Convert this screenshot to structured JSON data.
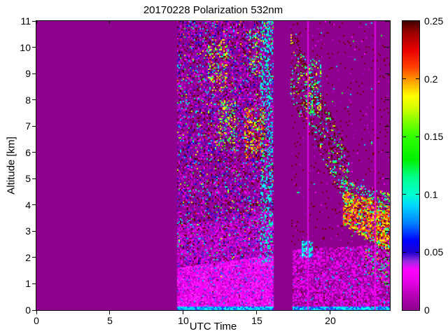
{
  "chart_data": {
    "type": "heatmap",
    "title": "20170228 Polarization 532nm",
    "xlabel": "UTC Time",
    "ylabel": "Altitude [km]",
    "x_range": [
      0,
      24.05
    ],
    "y_range": [
      0,
      11
    ],
    "x_tick_values": [
      0,
      5,
      10,
      15,
      20
    ],
    "x_tick_labels": [
      "0",
      "5",
      "10",
      "15",
      "20"
    ],
    "y_tick_values": [
      0,
      1,
      2,
      3,
      4,
      5,
      6,
      7,
      8,
      9,
      10,
      11
    ],
    "y_tick_labels": [
      "0",
      "1",
      "2",
      "3",
      "4",
      "5",
      "6",
      "7",
      "8",
      "9",
      "10",
      "11"
    ],
    "background_color": "#8E008E",
    "grid": false,
    "colorbar": {
      "min": 0,
      "max": 0.25,
      "tick_values": [
        0,
        0.05,
        0.1,
        0.15,
        0.2,
        0.25
      ],
      "tick_labels": [
        "0",
        "0.05",
        "0.1",
        "0.15",
        "0.2",
        "0.25"
      ],
      "stops": [
        {
          "value": 0.0,
          "color": "#8E008E"
        },
        {
          "value": 0.012,
          "color": "#B300B3"
        },
        {
          "value": 0.025,
          "color": "#E800E8"
        },
        {
          "value": 0.035,
          "color": "#FF00FF"
        },
        {
          "value": 0.042,
          "color": "#9B2BE2"
        },
        {
          "value": 0.05,
          "color": "#1E00CD"
        },
        {
          "value": 0.06,
          "color": "#0000FF"
        },
        {
          "value": 0.075,
          "color": "#0080FF"
        },
        {
          "value": 0.09,
          "color": "#00D4FF"
        },
        {
          "value": 0.1,
          "color": "#00FFD0"
        },
        {
          "value": 0.115,
          "color": "#00FF8C"
        },
        {
          "value": 0.13,
          "color": "#00F000"
        },
        {
          "value": 0.15,
          "color": "#30FF00"
        },
        {
          "value": 0.163,
          "color": "#80FF00"
        },
        {
          "value": 0.175,
          "color": "#D4FF00"
        },
        {
          "value": 0.185,
          "color": "#FFFF00"
        },
        {
          "value": 0.198,
          "color": "#FFA000"
        },
        {
          "value": 0.21,
          "color": "#FF4000"
        },
        {
          "value": 0.225,
          "color": "#E80000"
        },
        {
          "value": 0.24,
          "color": "#9B0000"
        },
        {
          "value": 0.25,
          "color": "#400000"
        }
      ]
    },
    "regions": [
      {
        "name": "main-noise-column",
        "type": "noise",
        "x": [
          9.55,
          16.1
        ],
        "a": [
          0,
          11
        ],
        "density": 0.72,
        "palette": [
          [
            "#9C00A8",
            20
          ],
          [
            "#7E0096",
            14
          ],
          [
            "#BB00BB",
            10
          ],
          [
            "#D800D8",
            7
          ],
          [
            "#FF00FF",
            5
          ],
          [
            "#4400CC",
            5
          ],
          [
            "#2A2AE8",
            4
          ],
          [
            "#0000C8",
            3
          ],
          [
            "#690010",
            7
          ],
          [
            "#430000",
            3
          ],
          [
            "#7A0000",
            3
          ],
          [
            "#00D9FF",
            3
          ],
          [
            "#00FFC3",
            1.5
          ],
          [
            "#2EFF2E",
            1.2
          ],
          [
            "#C8FF00",
            0.4
          ],
          [
            "#FFFF00",
            0.4
          ],
          [
            "#FF7700",
            0.3
          ],
          [
            "#FF2200",
            0.3
          ]
        ]
      },
      {
        "name": "violet-haze",
        "type": "band",
        "x": [
          9.55,
          16.1
        ],
        "top": [
          3.2,
          3.8
        ],
        "bot": [
          1.6,
          2.1
        ],
        "density": 0.6,
        "palette": [
          [
            "#C400CC",
            8
          ],
          [
            "#A800B8",
            6
          ],
          [
            "#E000E0",
            4
          ],
          [
            "#FF00FF",
            3
          ],
          [
            "#5533EE",
            1.5
          ],
          [
            "#2A2AE8",
            1
          ],
          [
            "#690010",
            0.8
          ],
          [
            "#00D9FF",
            0.5
          ]
        ]
      },
      {
        "name": "boundary-layer-a",
        "type": "band",
        "x": [
          9.55,
          16.1
        ],
        "top": [
          1.6,
          2.1
        ],
        "bot": [
          0.12,
          0.12
        ],
        "density": 0.95,
        "palette": [
          [
            "#FF00FF",
            10
          ],
          [
            "#FF30FF",
            6
          ],
          [
            "#E600E6",
            6
          ],
          [
            "#CC00CC",
            4
          ],
          [
            "#AA00BB",
            2
          ],
          [
            "#7744FF",
            1.2
          ],
          [
            "#3355FF",
            0.8
          ],
          [
            "#00BBFF",
            0.4
          ]
        ]
      },
      {
        "name": "surface-strip-a",
        "type": "noise",
        "x": [
          9.55,
          16.1
        ],
        "a": [
          0,
          0.14
        ],
        "density": 1,
        "palette": [
          [
            "#00CFFF",
            5
          ],
          [
            "#0077FF",
            3
          ],
          [
            "#00FFFF",
            2.5
          ],
          [
            "#2233FF",
            2
          ],
          [
            "#7700FF",
            0.5
          ]
        ]
      },
      {
        "name": "cyan-edge",
        "type": "noise",
        "x": [
          15.25,
          16.1
        ],
        "a": [
          1.8,
          11
        ],
        "density": 0.28,
        "palette": [
          [
            "#00FFFF",
            6
          ],
          [
            "#00FFCC",
            3
          ],
          [
            "#00CCFF",
            2
          ],
          [
            "#00FF66",
            2
          ],
          [
            "#2299FF",
            1
          ]
        ]
      },
      {
        "name": "hotspot-high-1",
        "type": "noise",
        "x": [
          11.65,
          12.95
        ],
        "a": [
          8.3,
          10.3
        ],
        "density": 0.25,
        "palette": [
          [
            "#FFFF00",
            3
          ],
          [
            "#FFA500",
            2
          ],
          [
            "#C8FF00",
            2
          ],
          [
            "#FF3300",
            1
          ],
          [
            "#690010",
            3
          ],
          [
            "#2EFF2E",
            2
          ],
          [
            "#00FFC3",
            1
          ]
        ]
      },
      {
        "name": "hotspot-mid-1",
        "type": "noise",
        "x": [
          12.4,
          13.5
        ],
        "a": [
          6.1,
          8.1
        ],
        "density": 0.28,
        "palette": [
          [
            "#2EFF2E",
            3
          ],
          [
            "#C8FF00",
            2.5
          ],
          [
            "#FFFF00",
            2
          ],
          [
            "#00FFC3",
            1.5
          ],
          [
            "#690010",
            2
          ],
          [
            "#FFA500",
            1
          ]
        ]
      },
      {
        "name": "hotspot-mid-2",
        "type": "noise",
        "x": [
          14.15,
          15.55
        ],
        "a": [
          5.8,
          7.7
        ],
        "density": 0.4,
        "palette": [
          [
            "#FF8800",
            3
          ],
          [
            "#FFFF00",
            2.5
          ],
          [
            "#FF3300",
            2
          ],
          [
            "#B82200",
            2
          ],
          [
            "#690010",
            2
          ],
          [
            "#C8FF00",
            1
          ],
          [
            "#2EFF2E",
            1
          ],
          [
            "#00FFFF",
            0.8
          ]
        ]
      },
      {
        "name": "hotspot-high-2",
        "type": "noise",
        "x": [
          14.5,
          15.4
        ],
        "a": [
          8.9,
          10.7
        ],
        "density": 0.26,
        "palette": [
          [
            "#00FFFF",
            2
          ],
          [
            "#2EFF2E",
            2
          ],
          [
            "#690010",
            2.5
          ],
          [
            "#FFFF00",
            1
          ],
          [
            "#FFA500",
            1
          ],
          [
            "#00FFC3",
            1
          ]
        ]
      },
      {
        "name": "evening-sparse",
        "type": "noise",
        "x": [
          17.25,
          24.05
        ],
        "a": [
          2.3,
          11
        ],
        "density": 0.055,
        "palette": [
          [
            "#690010",
            5
          ],
          [
            "#7A0000",
            2
          ],
          [
            "#A800B8",
            2.5
          ],
          [
            "#C400CC",
            1.5
          ],
          [
            "#00D9FF",
            0.4
          ],
          [
            "#2EFF2E",
            0.3
          ],
          [
            "#FF00FF",
            0.5
          ]
        ]
      },
      {
        "name": "boundary-layer-b",
        "type": "band",
        "x": [
          17.45,
          24.05
        ],
        "top": [
          2.3,
          2.5
        ],
        "bot": [
          0.12,
          0.12
        ],
        "density": 0.72,
        "palette": [
          [
            "#FF00FF",
            7
          ],
          [
            "#E600E6",
            5
          ],
          [
            "#CC00CC",
            5
          ],
          [
            "#AA00BB",
            4
          ],
          [
            "#8E008E",
            3
          ],
          [
            "#7744FF",
            1
          ],
          [
            "#00BBFF",
            0.5
          ],
          [
            "#690010",
            0.8
          ]
        ]
      },
      {
        "name": "surface-strip-b",
        "type": "noise",
        "x": [
          17.45,
          24.05
        ],
        "a": [
          0,
          0.14
        ],
        "density": 1,
        "palette": [
          [
            "#00CFFF",
            5
          ],
          [
            "#0077FF",
            3
          ],
          [
            "#00FFFF",
            2.5
          ],
          [
            "#2233FF",
            2
          ],
          [
            "#7700FF",
            0.5
          ]
        ]
      },
      {
        "name": "descending-cloud-layer",
        "type": "band",
        "x": [
          17.3,
          21.25
        ],
        "top": [
          10.7,
          6.0
        ],
        "bot": [
          8.0,
          3.8
        ],
        "density": 0.34,
        "palette": [
          [
            "#690010",
            8
          ],
          [
            "#4A0000",
            4
          ],
          [
            "#7A0000",
            3
          ],
          [
            "#2EFF2E",
            2.5
          ],
          [
            "#00FFC3",
            2
          ],
          [
            "#00FFFF",
            1.8
          ],
          [
            "#C8FF00",
            1
          ],
          [
            "#FFFF00",
            0.7
          ],
          [
            "#3355FF",
            1
          ],
          [
            "#FF00FF",
            0.8
          ],
          [
            "#FFA500",
            0.4
          ]
        ]
      },
      {
        "name": "green-cluster",
        "type": "noise",
        "x": [
          18.35,
          19.35
        ],
        "a": [
          7.5,
          9.5
        ],
        "density": 0.3,
        "palette": [
          [
            "#2EFF2E",
            3
          ],
          [
            "#00FFC3",
            2
          ],
          [
            "#00FFFF",
            2
          ],
          [
            "#C8FF00",
            1.5
          ],
          [
            "#690010",
            2
          ],
          [
            "#FFFF00",
            0.8
          ],
          [
            "#3355FF",
            0.8
          ]
        ]
      },
      {
        "name": "aerosol-band-fringe",
        "type": "band",
        "x": [
          20.7,
          24.05
        ],
        "top": [
          5.0,
          4.45
        ],
        "bot": [
          4.55,
          3.95
        ],
        "density": 0.4,
        "palette": [
          [
            "#2EFF2E",
            3
          ],
          [
            "#00FFC3",
            2
          ],
          [
            "#00FFFF",
            1.5
          ],
          [
            "#690010",
            2.5
          ],
          [
            "#C8FF00",
            1.5
          ],
          [
            "#FF8800",
            0.8
          ],
          [
            "#FF00FF",
            0.8
          ],
          [
            "#3355FF",
            0.6
          ]
        ]
      },
      {
        "name": "aerosol-band-core",
        "type": "band",
        "x": [
          20.85,
          24.05
        ],
        "top": [
          4.55,
          3.95
        ],
        "bot": [
          3.25,
          2.2
        ],
        "density": 0.78,
        "palette": [
          [
            "#FF8800",
            6
          ],
          [
            "#FF5500",
            4.5
          ],
          [
            "#FFFF00",
            4
          ],
          [
            "#FF2200",
            3
          ],
          [
            "#B82200",
            2.5
          ],
          [
            "#690010",
            2.5
          ],
          [
            "#C8FF00",
            2
          ],
          [
            "#2EFF2E",
            2
          ],
          [
            "#00FFC3",
            1.2
          ],
          [
            "#00FFFF",
            1
          ],
          [
            "#FF00FF",
            0.8
          ]
        ]
      },
      {
        "name": "virga-streaks",
        "type": "band",
        "x": [
          22.3,
          23.95
        ],
        "top": [
          3.25,
          2.3
        ],
        "bot": [
          1.5,
          0.8
        ],
        "density": 0.26,
        "palette": [
          [
            "#2EFF2E",
            2.5
          ],
          [
            "#00FFC3",
            1.8
          ],
          [
            "#00CFFF",
            1.2
          ],
          [
            "#690010",
            2
          ],
          [
            "#FF8800",
            1
          ],
          [
            "#FF00FF",
            1.5
          ],
          [
            "#C400CC",
            1
          ]
        ]
      },
      {
        "name": "cyan-blob",
        "type": "noise",
        "x": [
          18.05,
          18.8
        ],
        "a": [
          2.05,
          2.65
        ],
        "density": 0.65,
        "palette": [
          [
            "#00FFFF",
            5
          ],
          [
            "#00CFFF",
            3
          ],
          [
            "#66FFFF",
            2
          ],
          [
            "#0077FF",
            1
          ],
          [
            "#2EFF2E",
            0.8
          ]
        ]
      },
      {
        "name": "vertical-line-1",
        "type": "vline",
        "x": 18.48,
        "color": "#FF00FF",
        "w": 1.5
      },
      {
        "name": "vertical-line-2",
        "type": "vline",
        "x": 23.05,
        "color": "#FF00FF",
        "w": 1.5
      }
    ]
  }
}
